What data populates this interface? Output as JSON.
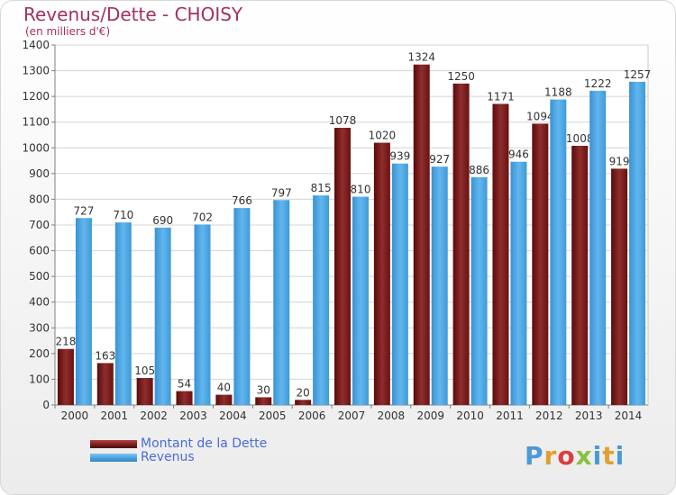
{
  "chart_data": {
    "type": "bar",
    "title": "Revenus/Dette - CHOISY",
    "subtitle": "(en milliers d'€)",
    "categories": [
      "2000",
      "2001",
      "2002",
      "2003",
      "2004",
      "2005",
      "2006",
      "2007",
      "2008",
      "2009",
      "2010",
      "2011",
      "2012",
      "2013",
      "2014"
    ],
    "series": [
      {
        "name": "Montant de la Dette",
        "color": "#7a1a1a",
        "values": [
          218,
          163,
          105,
          54,
          40,
          30,
          20,
          1078,
          1020,
          1324,
          1250,
          1171,
          1094,
          1008,
          919
        ],
        "labels": [
          "218",
          "163",
          "105",
          "54",
          "40",
          "30",
          "20",
          "1078",
          "1020",
          "1324",
          "1250",
          "1171",
          "1094",
          "1008",
          "919"
        ]
      },
      {
        "name": "Revenus",
        "color": "#4aa6e6",
        "values": [
          727,
          710,
          690,
          702,
          766,
          797,
          815,
          810,
          939,
          927,
          886,
          946,
          1188,
          1222,
          1257
        ],
        "labels": [
          "727",
          "710",
          "690",
          "702",
          "766",
          "797",
          "815",
          "810",
          "939",
          "927",
          "886",
          "946",
          "1188",
          "1222",
          "1257"
        ]
      }
    ],
    "ylim": [
      0,
      1400
    ],
    "yticks": [
      0,
      100,
      200,
      300,
      400,
      500,
      600,
      700,
      800,
      900,
      1000,
      1100,
      1200,
      1300,
      1400
    ],
    "grid": true,
    "legend": "bottom-left"
  },
  "logo": {
    "p": "P",
    "r": "r",
    "o": "o",
    "x": "x",
    "i1": "i",
    "t": "t",
    "i2": "i"
  }
}
